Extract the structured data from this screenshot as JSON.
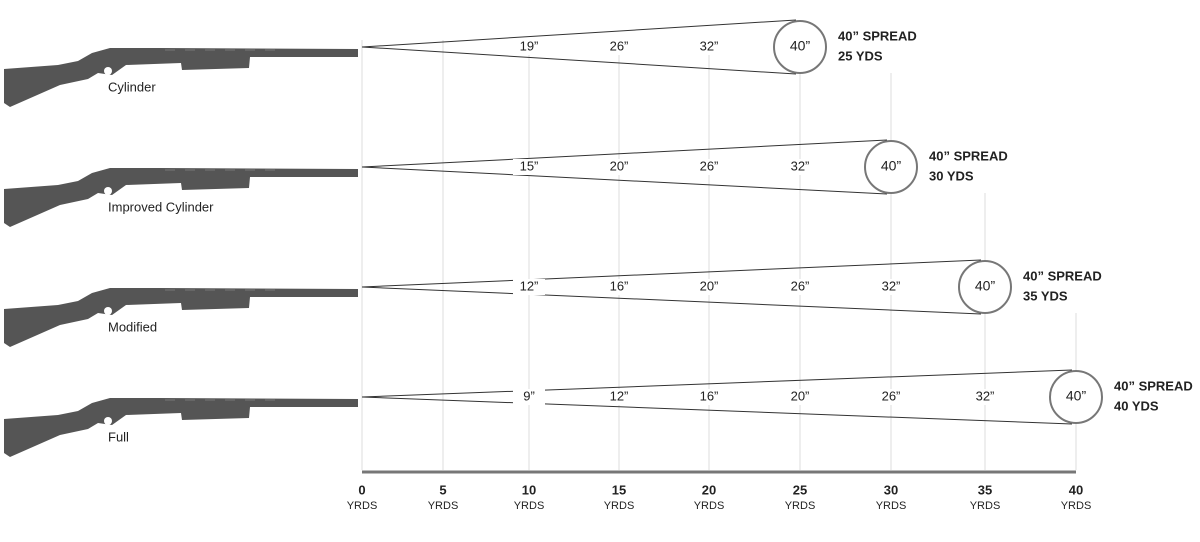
{
  "axis": {
    "ticks": [
      {
        "value": "0",
        "unit": "YRDS"
      },
      {
        "value": "5",
        "unit": "YRDS"
      },
      {
        "value": "10",
        "unit": "YRDS"
      },
      {
        "value": "15",
        "unit": "YRDS"
      },
      {
        "value": "20",
        "unit": "YRDS"
      },
      {
        "value": "25",
        "unit": "YRDS"
      },
      {
        "value": "30",
        "unit": "YRDS"
      },
      {
        "value": "35",
        "unit": "YRDS"
      },
      {
        "value": "40",
        "unit": "YRDS"
      }
    ]
  },
  "rows": [
    {
      "name": "Cylinder",
      "spreads": [
        "19”",
        "26”",
        "32”"
      ],
      "circle": "40”",
      "spread_label": "40” SPREAD",
      "range_label": "25 YDS"
    },
    {
      "name": "Improved Cylinder",
      "spreads": [
        "15”",
        "20”",
        "26”",
        "32”"
      ],
      "circle": "40”",
      "spread_label": "40” SPREAD",
      "range_label": "30 YDS"
    },
    {
      "name": "Modified",
      "spreads": [
        "12”",
        "16”",
        "20”",
        "26”",
        "32”"
      ],
      "circle": "40”",
      "spread_label": "40” SPREAD",
      "range_label": "35 YDS"
    },
    {
      "name": "Full",
      "spreads": [
        "9”",
        "12”",
        "16”",
        "20”",
        "26”",
        "32”"
      ],
      "circle": "40”",
      "spread_label": "40” SPREAD",
      "range_label": "40 YDS"
    }
  ]
}
